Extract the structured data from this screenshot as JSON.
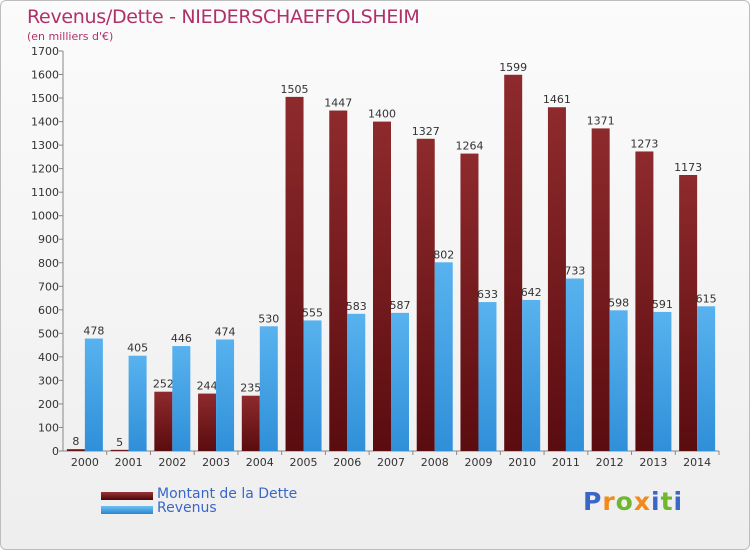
{
  "chart_data": {
    "type": "bar",
    "title": "Revenus/Dette - NIEDERSCHAEFFOLSHEIM",
    "subtitle": "(en milliers d'€)",
    "categories": [
      "2000",
      "2001",
      "2002",
      "2003",
      "2004",
      "2005",
      "2006",
      "2007",
      "2008",
      "2009",
      "2010",
      "2011",
      "2012",
      "2013",
      "2014"
    ],
    "series": [
      {
        "name": "Montant de la Dette",
        "color": "#7a1f22",
        "values": [
          8,
          5,
          252,
          244,
          235,
          1505,
          1447,
          1400,
          1327,
          1264,
          1599,
          1461,
          1371,
          1273,
          1173
        ]
      },
      {
        "name": "Revenus",
        "color": "#4aa3e6",
        "values": [
          478,
          405,
          446,
          474,
          530,
          555,
          583,
          587,
          802,
          633,
          642,
          733,
          598,
          591,
          615
        ]
      }
    ],
    "ylim": [
      0,
      1700
    ],
    "yticks": [
      0,
      100,
      200,
      300,
      400,
      500,
      600,
      700,
      800,
      900,
      1000,
      1100,
      1200,
      1300,
      1400,
      1500,
      1600,
      1700
    ],
    "grid": false,
    "legend": "bottom-left"
  },
  "logo": {
    "letters": [
      "P",
      "r",
      "o",
      "x",
      "i",
      "t",
      "i"
    ],
    "colors": [
      "#3a66c8",
      "#f08a1c",
      "#6fb82e",
      "#f08a1c",
      "#3a66c8",
      "#6fb82e",
      "#3a66c8"
    ]
  }
}
